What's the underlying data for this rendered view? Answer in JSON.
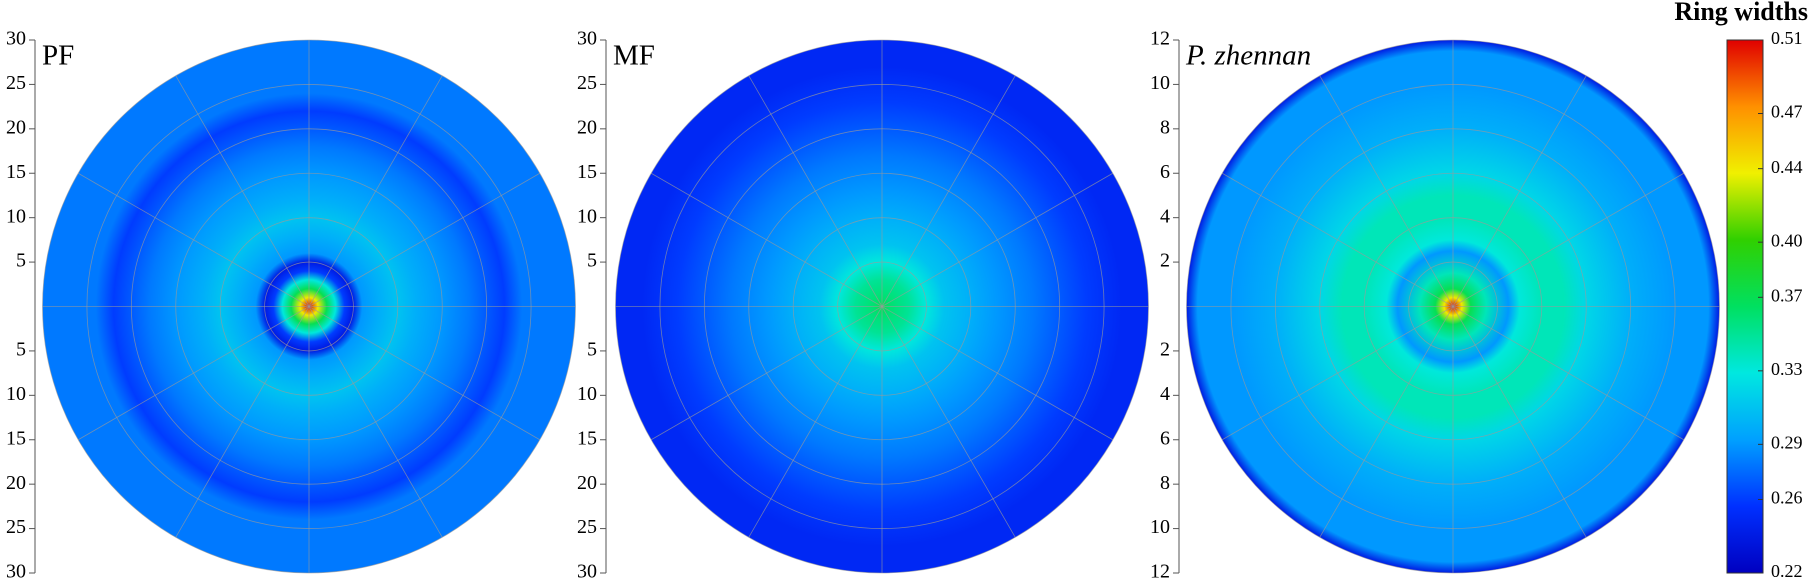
{
  "chart_data": [
    {
      "type": "polar-heatmap",
      "label": "PF",
      "ylim": [
        -30,
        30
      ],
      "yticks": [
        30,
        25,
        20,
        15,
        10,
        5,
        {
          "value": -5,
          "label": "5"
        },
        {
          "value": -10,
          "label": "10"
        },
        {
          "value": -15,
          "label": "15"
        },
        {
          "value": -20,
          "label": "20"
        },
        {
          "value": -25,
          "label": "25"
        },
        {
          "value": -30,
          "label": "30"
        }
      ],
      "r": [
        0,
        1,
        2,
        3,
        4,
        5,
        6,
        8,
        10,
        12,
        15,
        18,
        20,
        22,
        24,
        27,
        30
      ],
      "values": [
        0.51,
        0.44,
        0.37,
        0.33,
        0.26,
        0.24,
        0.29,
        0.3,
        0.31,
        0.3,
        0.29,
        0.28,
        0.27,
        0.26,
        0.28,
        0.28,
        0.28
      ]
    },
    {
      "type": "polar-heatmap",
      "label": "MF",
      "ylim": [
        -30,
        30
      ],
      "yticks": [
        30,
        25,
        20,
        15,
        10,
        5,
        {
          "value": -5,
          "label": "5"
        },
        {
          "value": -10,
          "label": "10"
        },
        {
          "value": -15,
          "label": "15"
        },
        {
          "value": -20,
          "label": "20"
        },
        {
          "value": -25,
          "label": "25"
        },
        {
          "value": -30,
          "label": "30"
        }
      ],
      "r": [
        0,
        1,
        3,
        5,
        7,
        10,
        13,
        17,
        20,
        23,
        27,
        30
      ],
      "values": [
        0.37,
        0.36,
        0.35,
        0.33,
        0.31,
        0.3,
        0.29,
        0.28,
        0.27,
        0.26,
        0.25,
        0.25
      ]
    },
    {
      "type": "polar-heatmap",
      "label": "P. zhennan",
      "ylim": [
        -12,
        12
      ],
      "yticks": [
        12,
        10,
        8,
        6,
        4,
        2,
        {
          "value": -2,
          "label": "2"
        },
        {
          "value": -4,
          "label": "4"
        },
        {
          "value": -6,
          "label": "6"
        },
        {
          "value": -8,
          "label": "8"
        },
        {
          "value": -10,
          "label": "10"
        },
        {
          "value": -12,
          "label": "12"
        }
      ],
      "r": [
        0,
        0.4,
        0.8,
        1.5,
        2.5,
        3,
        4,
        5,
        6,
        8,
        10,
        11.5,
        12
      ],
      "values": [
        0.51,
        0.44,
        0.37,
        0.34,
        0.29,
        0.33,
        0.34,
        0.34,
        0.32,
        0.3,
        0.29,
        0.29,
        0.24
      ]
    },
    {
      "type": "colorbar",
      "title": "Ring widths",
      "ylim": [
        0.22,
        0.51
      ],
      "yticks": [
        0.22,
        0.26,
        0.29,
        0.33,
        0.37,
        {
          "value": 0.4,
          "label": "0.40"
        },
        0.44,
        0.47,
        0.51
      ],
      "colors": [
        "#0000c0",
        "#0030ff",
        "#00a0ff",
        "#00e8e0",
        "#00e060",
        "#30d000",
        "#f0f000",
        "#ff9000",
        "#e00000"
      ]
    }
  ]
}
